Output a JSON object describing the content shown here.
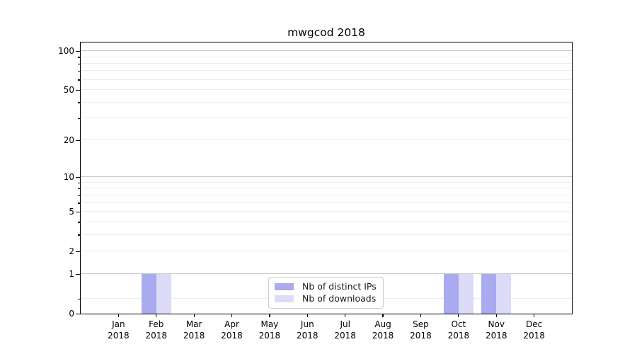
{
  "figure": {
    "background": "#ffffff"
  },
  "chart_data": {
    "type": "bar",
    "title": "mwgcod 2018",
    "categories": [
      {
        "month": "Jan",
        "year": "2018"
      },
      {
        "month": "Feb",
        "year": "2018"
      },
      {
        "month": "Mar",
        "year": "2018"
      },
      {
        "month": "Apr",
        "year": "2018"
      },
      {
        "month": "May",
        "year": "2018"
      },
      {
        "month": "Jun",
        "year": "2018"
      },
      {
        "month": "Jul",
        "year": "2018"
      },
      {
        "month": "Aug",
        "year": "2018"
      },
      {
        "month": "Sep",
        "year": "2018"
      },
      {
        "month": "Oct",
        "year": "2018"
      },
      {
        "month": "Nov",
        "year": "2018"
      },
      {
        "month": "Dec",
        "year": "2018"
      }
    ],
    "series": [
      {
        "name": "Nb of distinct IPs",
        "color": "#aaaaf0",
        "values": [
          0,
          1,
          0,
          0,
          0,
          0,
          0,
          0,
          0,
          1,
          1,
          0
        ]
      },
      {
        "name": "Nb of downloads",
        "color": "#dcdcf8",
        "values": [
          0,
          1,
          0,
          0,
          0,
          0,
          0,
          0,
          0,
          1,
          1,
          0
        ]
      }
    ],
    "y_axis": {
      "scale": "log10(value+1)",
      "range": [
        0,
        117
      ],
      "tick_labels": [
        0,
        1,
        2,
        5,
        10,
        20,
        50,
        100
      ],
      "major_gridlines": [
        1,
        10,
        100
      ],
      "minor_gridlines": [
        0.3,
        2,
        3,
        4,
        5,
        6,
        7,
        8,
        9,
        20,
        30,
        40,
        50,
        60,
        70,
        80,
        90
      ]
    },
    "x_axis": {
      "tick_count": 12
    },
    "legend": {
      "position": "lower center"
    },
    "grid": true,
    "colors": {
      "major_grid": "#c8c8c8",
      "minor_grid": "#ededed",
      "spine": "#000000",
      "text": "#000000",
      "legend_border": "#cccccc"
    }
  }
}
